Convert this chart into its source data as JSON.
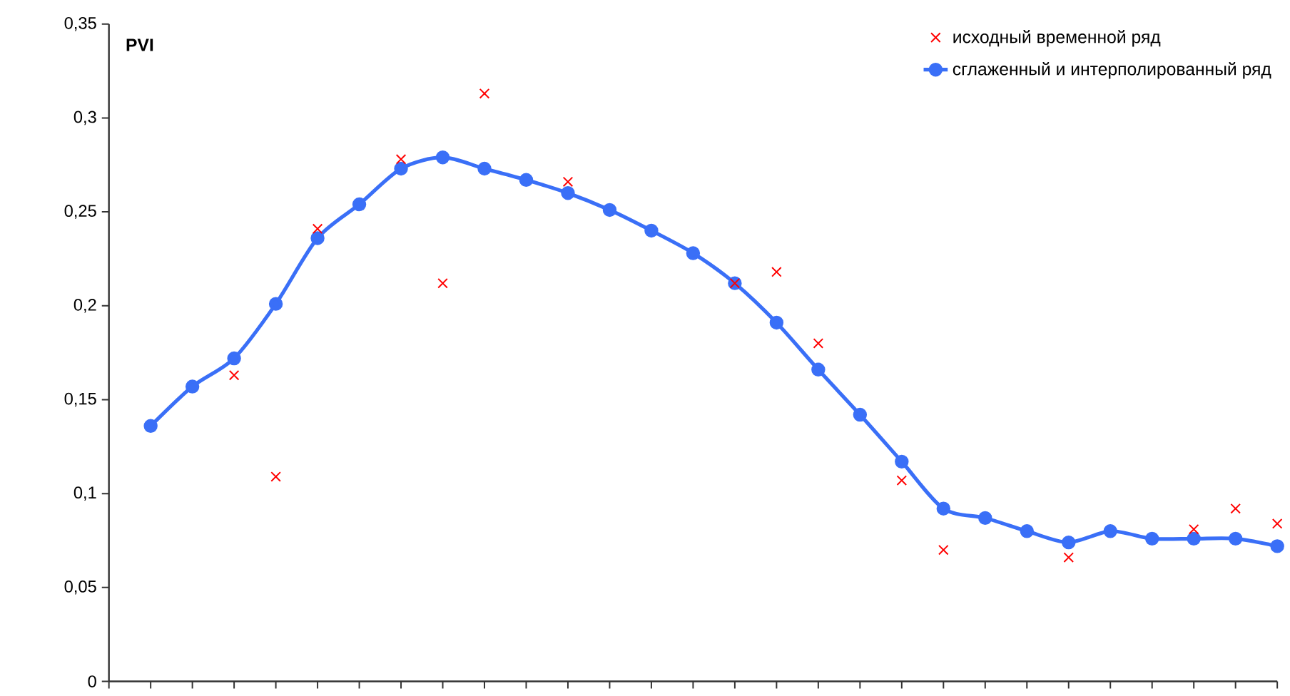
{
  "chart_data": {
    "type": "line",
    "ylabel": "PVI",
    "categories": [
      null,
      null,
      null,
      null,
      null,
      null,
      null,
      null,
      null,
      null,
      null,
      null,
      null,
      null,
      null,
      null,
      null,
      null,
      null,
      null,
      null,
      null,
      null,
      null,
      null,
      null,
      null,
      null,
      null
    ],
    "ylim": [
      0,
      0.35
    ],
    "yticks": [
      0,
      {
        "value": 0.05,
        "label": "0,05"
      },
      {
        "value": 0.1,
        "label": "0,1"
      },
      {
        "value": 0.15,
        "label": "0,15"
      },
      {
        "value": 0.2,
        "label": "0,2"
      },
      {
        "value": 0.25,
        "label": "0,25"
      },
      {
        "value": 0.3,
        "label": "0,3"
      },
      {
        "value": 0.35,
        "label": "0,35"
      }
    ],
    "legend": "top right",
    "series": [
      {
        "name": "исходный временной ряд",
        "type": "scatter",
        "marker": "cross",
        "color": "#ff0000",
        "values": [
          null,
          null,
          null,
          0.163,
          0.109,
          0.241,
          null,
          0.278,
          0.212,
          0.313,
          null,
          0.266,
          null,
          null,
          null,
          0.212,
          0.218,
          0.18,
          null,
          0.107,
          0.07,
          null,
          null,
          0.066,
          null,
          null,
          0.081,
          0.092,
          0.084
        ]
      },
      {
        "name": "сглаженный и интерполированный ряд",
        "marker": "circle",
        "color": "#3a6ff7",
        "values": [
          null,
          0.136,
          0.157,
          0.172,
          0.201,
          0.236,
          0.254,
          0.273,
          0.279,
          0.273,
          0.267,
          0.26,
          0.251,
          0.24,
          0.228,
          0.212,
          0.191,
          0.166,
          0.142,
          0.117,
          0.092,
          0.087,
          0.08,
          0.074,
          0.08,
          0.076,
          0.076,
          0.076,
          0.072
        ]
      }
    ]
  }
}
